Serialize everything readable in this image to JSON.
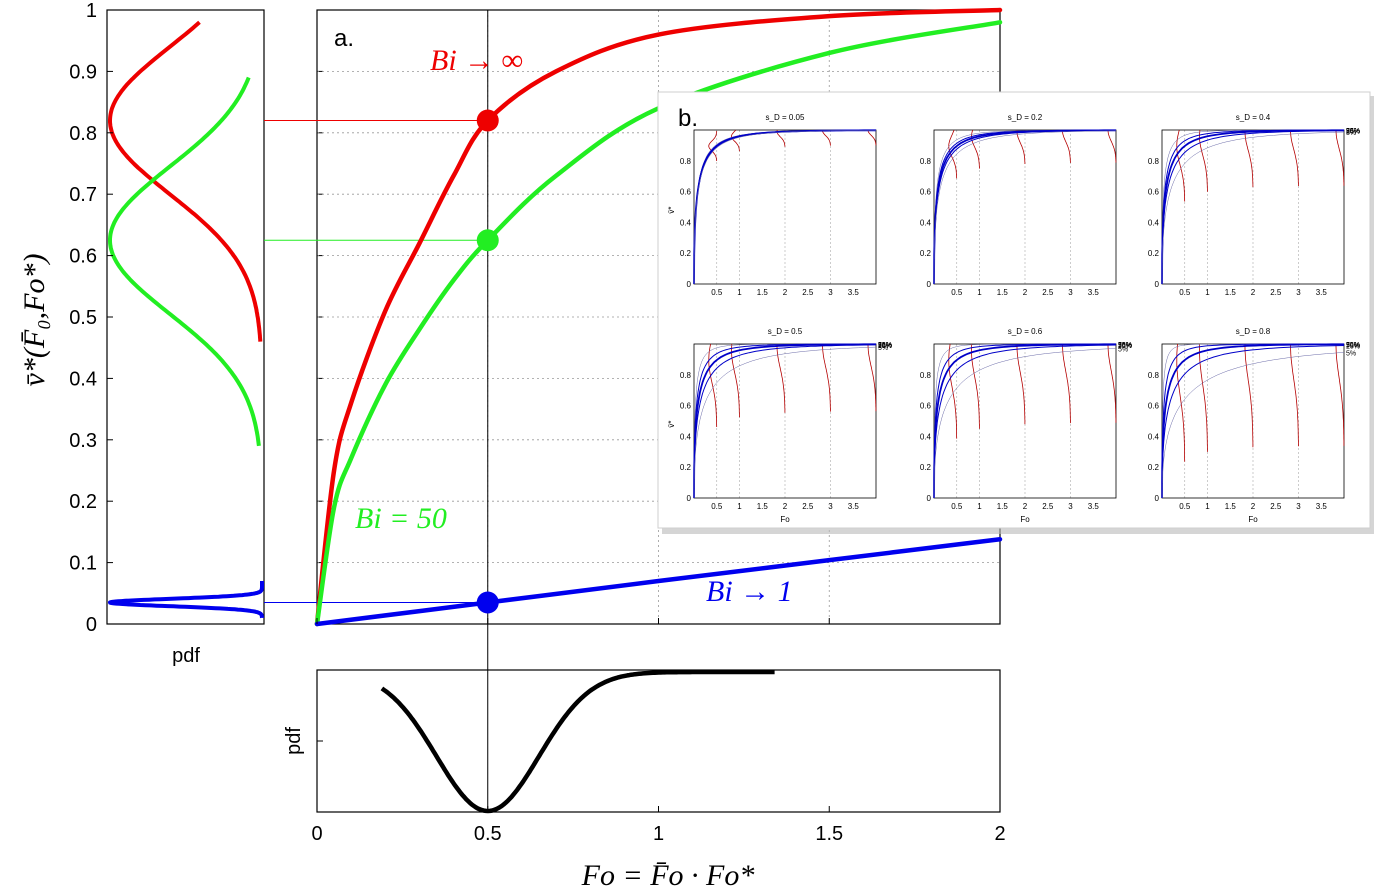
{
  "colors": {
    "red": "#ee0000",
    "green": "#22ee22",
    "blue": "#0000ee",
    "black": "#000000",
    "inset_red": "#b40000",
    "inset_blue": "#0000c8"
  },
  "main": {
    "panel_label": "a.",
    "xticks": [
      "0",
      "0.5",
      "1",
      "1.5",
      "2"
    ],
    "yticks": [
      "0",
      "0.1",
      "0.2",
      "0.3",
      "0.4",
      "0.5",
      "0.6",
      "0.7",
      "0.8",
      "0.9",
      "1"
    ],
    "ylabel": "v̄*(F̄₀,Fo*)",
    "xlabel": "Fo = F̄o · Fo*",
    "annotations": {
      "red": "Bi → ∞",
      "green": "Bi = 50",
      "blue": "Bi → 1"
    }
  },
  "left_pdf": {
    "xlabel": "pdf"
  },
  "bottom_pdf": {
    "ylabel": "pdf"
  },
  "inset": {
    "panel_label": "b.",
    "xlabel": "Fo",
    "ylabel": "v̄*",
    "xticks": [
      "0.5",
      "1",
      "1.5",
      "2",
      "2.5",
      "3",
      "3.5"
    ],
    "yticks": [
      "0",
      "0.2",
      "0.4",
      "0.6",
      "0.8"
    ],
    "percentile_labels": [
      "95%",
      "75%",
      "50%",
      "25%",
      "5%"
    ],
    "panels": [
      {
        "title": "s_D = 0.05",
        "sd": 0.05
      },
      {
        "title": "s_D = 0.2",
        "sd": 0.2
      },
      {
        "title": "s_D = 0.4",
        "sd": 0.4
      },
      {
        "title": "s_D = 0.5",
        "sd": 0.5
      },
      {
        "title": "s_D = 0.6",
        "sd": 0.6
      },
      {
        "title": "s_D = 0.8",
        "sd": 0.8
      }
    ]
  },
  "chart_data": [
    {
      "type": "line",
      "title": "",
      "xlabel": "Fo = F̄o · Fo*",
      "ylabel": "v̄*(F̄₀,Fo*)",
      "xlim": [
        0,
        2
      ],
      "ylim": [
        0,
        1
      ],
      "grid": true,
      "series": [
        {
          "name": "Bi → ∞",
          "x": [
            0,
            0.05,
            0.1,
            0.2,
            0.3,
            0.4,
            0.5,
            0.7,
            1.0,
            1.5,
            2.0
          ],
          "y": [
            0,
            0.25,
            0.36,
            0.51,
            0.62,
            0.73,
            0.82,
            0.9,
            0.96,
            0.99,
            1.0
          ]
        },
        {
          "name": "Bi = 50",
          "x": [
            0,
            0.05,
            0.1,
            0.2,
            0.3,
            0.4,
            0.5,
            0.7,
            1.0,
            1.5,
            2.0
          ],
          "y": [
            0,
            0.19,
            0.27,
            0.39,
            0.48,
            0.56,
            0.625,
            0.73,
            0.84,
            0.93,
            0.98
          ]
        },
        {
          "name": "Bi → 1",
          "x": [
            0,
            0.5,
            1.0,
            1.5,
            2.0
          ],
          "y": [
            0,
            0.035,
            0.07,
            0.104,
            0.138
          ]
        }
      ],
      "markers": [
        {
          "x": 0.5,
          "y": 0.82,
          "series": "Bi → ∞"
        },
        {
          "x": 0.5,
          "y": 0.625,
          "series": "Bi = 50"
        },
        {
          "x": 0.5,
          "y": 0.035,
          "series": "Bi → 1"
        }
      ],
      "vertical_line_x": 0.5
    },
    {
      "type": "line",
      "title": "",
      "xlabel": "pdf",
      "ylabel": "",
      "ylim": [
        0,
        1
      ],
      "orientation": "horizontal-density",
      "series": [
        {
          "name": "Bi → ∞",
          "mean": 0.82,
          "sd": 0.12,
          "y_range": [
            0.46,
            0.98
          ]
        },
        {
          "name": "Bi = 50",
          "mean": 0.625,
          "sd": 0.12,
          "y_range": [
            0.29,
            0.89
          ]
        },
        {
          "name": "Bi → 1",
          "mean": 0.035,
          "sd": 0.006,
          "y_range": [
            0.01,
            0.07
          ]
        }
      ]
    },
    {
      "type": "line",
      "title": "",
      "xlabel": "",
      "ylabel": "pdf",
      "xlim": [
        0,
        2
      ],
      "series": [
        {
          "name": "",
          "mean": 0.5,
          "sd": 0.15,
          "x_range": [
            0.19,
            1.34
          ]
        }
      ]
    }
  ]
}
